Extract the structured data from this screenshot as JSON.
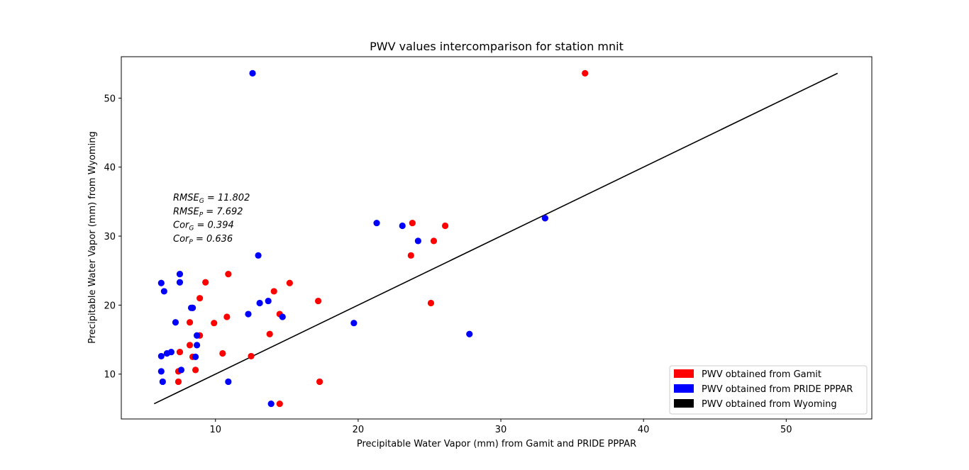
{
  "chart_data": {
    "type": "scatter",
    "title": "PWV values intercomparison for station mnit",
    "xlabel": "Precipitable Water Vapor (mm) from Gamit and PRIDE PPPAR",
    "ylabel": "Precipitable Water Vapor (mm) from Wyoming",
    "xlim": [
      3.4,
      56.0
    ],
    "ylim": [
      3.5,
      56.0
    ],
    "xticks": [
      10,
      20,
      30,
      40,
      50
    ],
    "yticks": [
      10,
      20,
      30,
      40,
      50
    ],
    "grid": false,
    "legend_position": "bottom-right",
    "annotations": [
      {
        "main": "RMSE",
        "sub": "G",
        "rest": " = 11.802"
      },
      {
        "main": "RMSE",
        "sub": "P",
        "rest": " = 7.692"
      },
      {
        "main": "Cor",
        "sub": "G",
        "rest": " = 0.394"
      },
      {
        "main": "Cor",
        "sub": "P",
        "rest": " = 0.636"
      }
    ],
    "series": [
      {
        "name": "PWV obtained from Gamit",
        "color": "#ff0000",
        "kind": "scatter",
        "x": [
          35.9,
          33.1,
          23.8,
          26.1,
          25.3,
          23.7,
          17.2,
          25.1,
          15.2,
          14.1,
          14.5,
          10.9,
          9.3,
          8.9,
          8.4,
          8.2,
          10.8,
          9.9,
          8.9,
          8.2,
          7.5,
          8.4,
          8.6,
          7.4,
          7.4,
          10.5,
          12.5,
          13.8,
          14.5,
          17.3
        ],
        "y": [
          53.6,
          32.6,
          31.9,
          31.5,
          29.3,
          27.2,
          20.6,
          20.3,
          23.2,
          22.0,
          18.7,
          24.5,
          23.3,
          21.0,
          19.6,
          17.5,
          18.3,
          17.4,
          15.6,
          14.2,
          13.2,
          12.5,
          10.6,
          10.4,
          8.9,
          13.0,
          12.6,
          15.8,
          5.7,
          8.9
        ]
      },
      {
        "name": "PWV obtained from PRIDE PPPAR",
        "color": "#0000ff",
        "kind": "scatter",
        "x": [
          12.6,
          33.1,
          21.3,
          23.1,
          24.2,
          13.0,
          6.2,
          7.5,
          7.5,
          6.4,
          8.3,
          8.4,
          12.3,
          13.1,
          13.7,
          14.7,
          19.7,
          7.2,
          8.7,
          8.7,
          6.9,
          6.6,
          6.2,
          8.6,
          7.6,
          6.2,
          6.3,
          10.9,
          13.9,
          27.8
        ],
        "y": [
          53.6,
          32.6,
          31.9,
          31.5,
          29.3,
          27.2,
          23.2,
          24.5,
          23.3,
          22.0,
          19.6,
          19.6,
          18.7,
          20.3,
          20.6,
          18.3,
          17.4,
          17.5,
          15.6,
          14.2,
          13.2,
          13.0,
          12.6,
          12.5,
          10.6,
          10.4,
          8.9,
          8.9,
          5.7,
          15.8
        ]
      },
      {
        "name": "PWV obtained from Wyoming",
        "color": "#000000",
        "kind": "line",
        "x": [
          5.7,
          53.6
        ],
        "y": [
          5.7,
          53.6
        ]
      }
    ]
  }
}
